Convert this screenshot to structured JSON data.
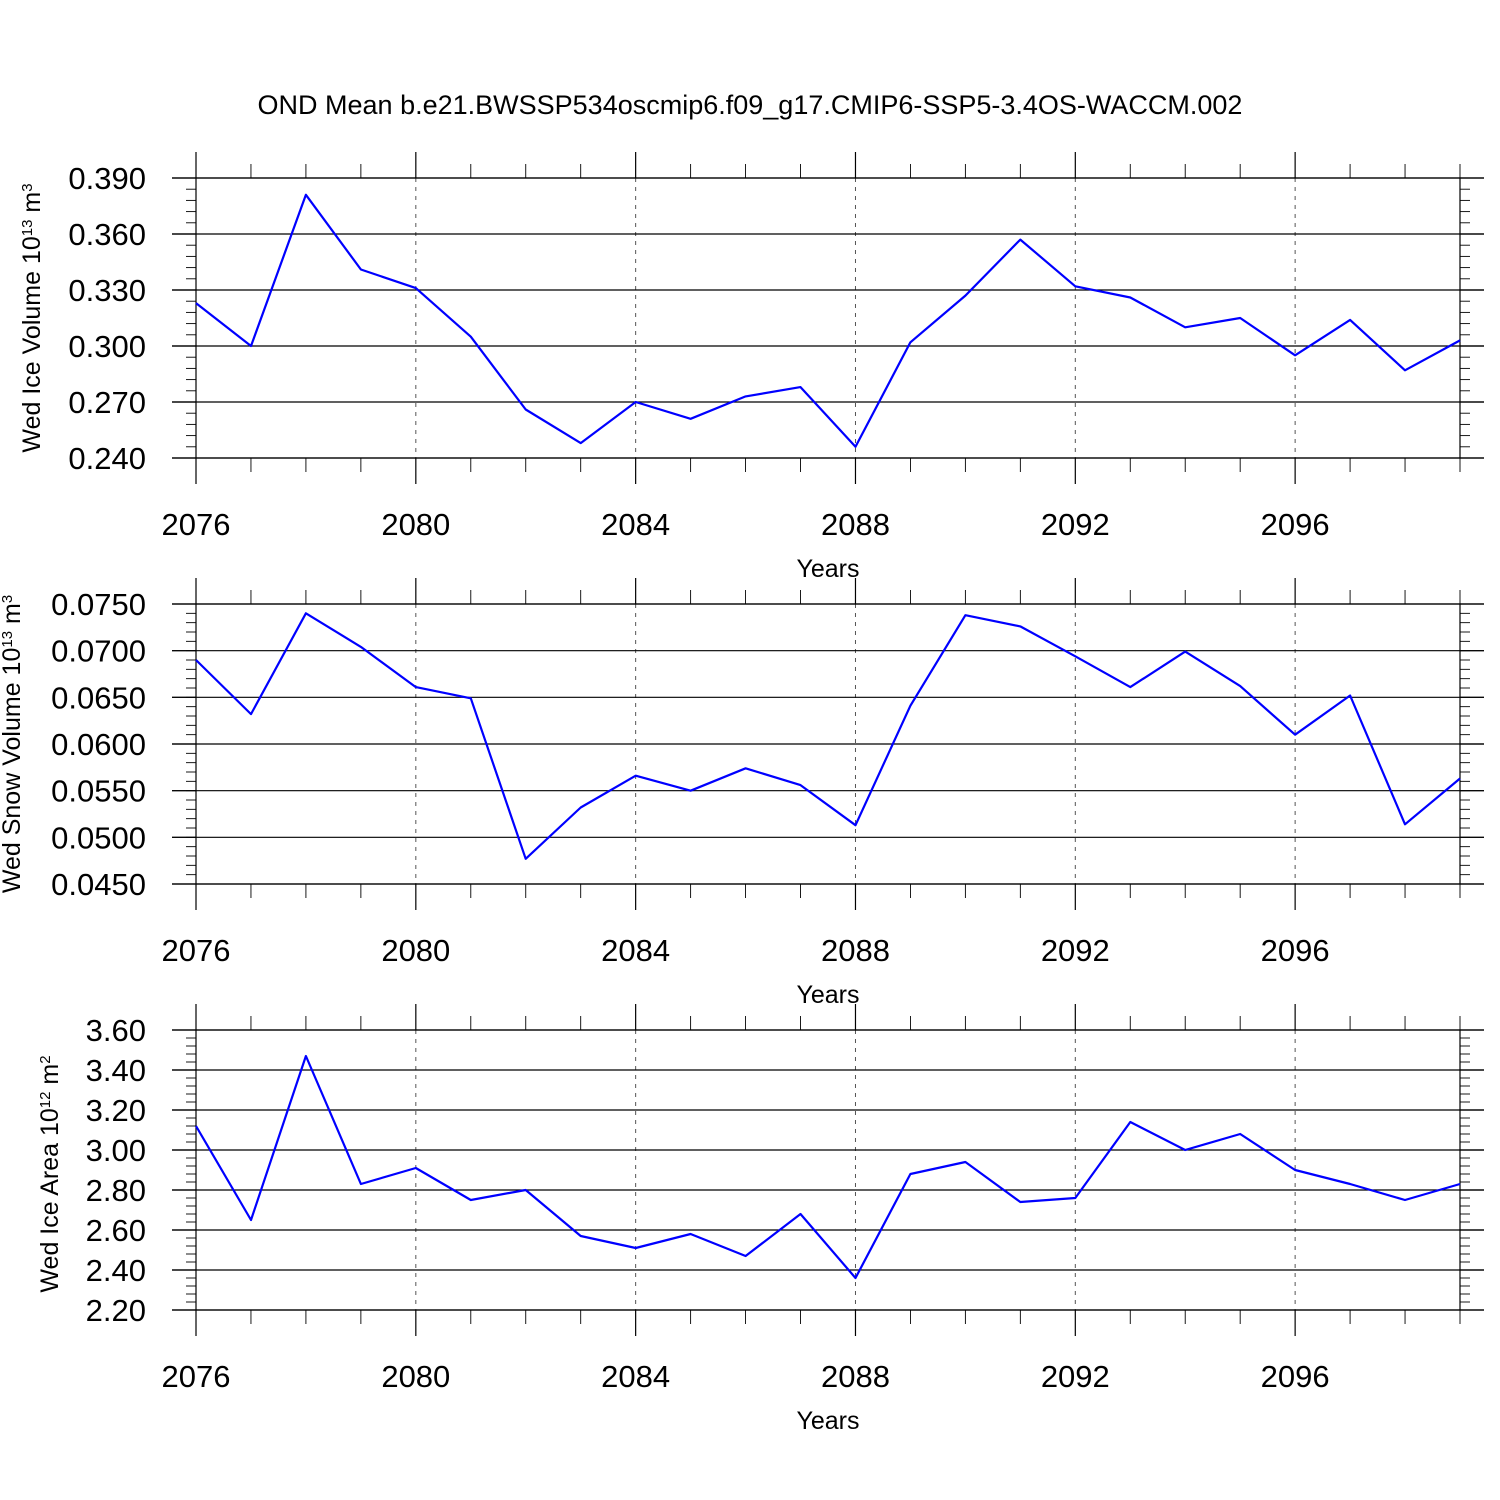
{
  "title": "OND Mean b.e21.BWSSP534oscmip6.f09_g17.CMIP6-SSP5-3.4OS-WACCM.002",
  "colors": {
    "series": "#0000ff",
    "axis": "#000000",
    "grid": "#555555"
  },
  "chart_data": [
    {
      "type": "line",
      "xlabel": "Years",
      "ylabel": {
        "text": "Wed Ice Volume 10",
        "exp": "13",
        "unit": " m",
        "unit_exp": "3"
      },
      "xlim": [
        2076,
        2099
      ],
      "ylim": [
        0.24,
        0.39
      ],
      "x_ticks": [
        2076,
        2080,
        2084,
        2088,
        2092,
        2096
      ],
      "x_tick_labels": [
        "2076",
        "2080",
        "2084",
        "2088",
        "2092",
        "2096"
      ],
      "y_ticks": [
        0.24,
        0.27,
        0.3,
        0.33,
        0.36,
        0.39
      ],
      "y_tick_labels": [
        "0.240",
        "0.270",
        "0.300",
        "0.330",
        "0.360",
        "0.390"
      ],
      "y_minor_step": 0.006,
      "grid": "x-dashed",
      "x": [
        2076,
        2077,
        2078,
        2079,
        2080,
        2081,
        2082,
        2083,
        2084,
        2085,
        2086,
        2087,
        2088,
        2089,
        2090,
        2091,
        2092,
        2093,
        2094,
        2095,
        2096,
        2097,
        2098,
        2099
      ],
      "series": [
        {
          "values": [
            0.323,
            0.3,
            0.381,
            0.341,
            0.331,
            0.305,
            0.266,
            0.248,
            0.27,
            0.261,
            0.273,
            0.278,
            0.246,
            0.302,
            0.327,
            0.357,
            0.332,
            0.326,
            0.31,
            0.315,
            0.295,
            0.314,
            0.287,
            0.303
          ]
        }
      ]
    },
    {
      "type": "line",
      "xlabel": "Years",
      "ylabel": {
        "text": "Wed Snow Volume 10",
        "exp": "13",
        "unit": " m",
        "unit_exp": "3"
      },
      "xlim": [
        2076,
        2099
      ],
      "ylim": [
        0.045,
        0.075
      ],
      "x_ticks": [
        2076,
        2080,
        2084,
        2088,
        2092,
        2096
      ],
      "x_tick_labels": [
        "2076",
        "2080",
        "2084",
        "2088",
        "2092",
        "2096"
      ],
      "y_ticks": [
        0.045,
        0.05,
        0.055,
        0.06,
        0.065,
        0.07,
        0.075
      ],
      "y_tick_labels": [
        "0.0450",
        "0.0500",
        "0.0550",
        "0.0600",
        "0.0650",
        "0.0700",
        "0.0750"
      ],
      "y_minor_step": 0.001,
      "grid": "x-dashed",
      "x": [
        2076,
        2077,
        2078,
        2079,
        2080,
        2081,
        2082,
        2083,
        2084,
        2085,
        2086,
        2087,
        2088,
        2089,
        2090,
        2091,
        2092,
        2093,
        2094,
        2095,
        2096,
        2097,
        2098,
        2099
      ],
      "series": [
        {
          "values": [
            0.069,
            0.0632,
            0.074,
            0.0704,
            0.0661,
            0.0649,
            0.0477,
            0.0532,
            0.0566,
            0.055,
            0.0574,
            0.0556,
            0.0513,
            0.0641,
            0.0738,
            0.0726,
            0.0694,
            0.0661,
            0.0699,
            0.0662,
            0.061,
            0.0652,
            0.0514,
            0.0563
          ]
        }
      ]
    },
    {
      "type": "line",
      "xlabel": "Years",
      "ylabel": {
        "text": "Wed Ice Area 10",
        "exp": "12",
        "unit": " m",
        "unit_exp": "2"
      },
      "xlim": [
        2076,
        2099
      ],
      "ylim": [
        2.2,
        3.6
      ],
      "x_ticks": [
        2076,
        2080,
        2084,
        2088,
        2092,
        2096
      ],
      "x_tick_labels": [
        "2076",
        "2080",
        "2084",
        "2088",
        "2092",
        "2096"
      ],
      "y_ticks": [
        2.2,
        2.4,
        2.6,
        2.8,
        3.0,
        3.2,
        3.4,
        3.6
      ],
      "y_tick_labels": [
        "2.20",
        "2.40",
        "2.60",
        "2.80",
        "3.00",
        "3.20",
        "3.40",
        "3.60"
      ],
      "y_minor_step": 0.04,
      "grid": "x-dashed",
      "x": [
        2076,
        2077,
        2078,
        2079,
        2080,
        2081,
        2082,
        2083,
        2084,
        2085,
        2086,
        2087,
        2088,
        2089,
        2090,
        2091,
        2092,
        2093,
        2094,
        2095,
        2096,
        2097,
        2098,
        2099
      ],
      "series": [
        {
          "values": [
            3.12,
            2.65,
            3.47,
            2.83,
            2.91,
            2.75,
            2.8,
            2.57,
            2.51,
            2.58,
            2.47,
            2.68,
            2.36,
            2.88,
            2.94,
            2.74,
            2.76,
            3.14,
            3.0,
            3.08,
            2.9,
            2.83,
            2.75,
            2.83
          ]
        }
      ]
    }
  ]
}
